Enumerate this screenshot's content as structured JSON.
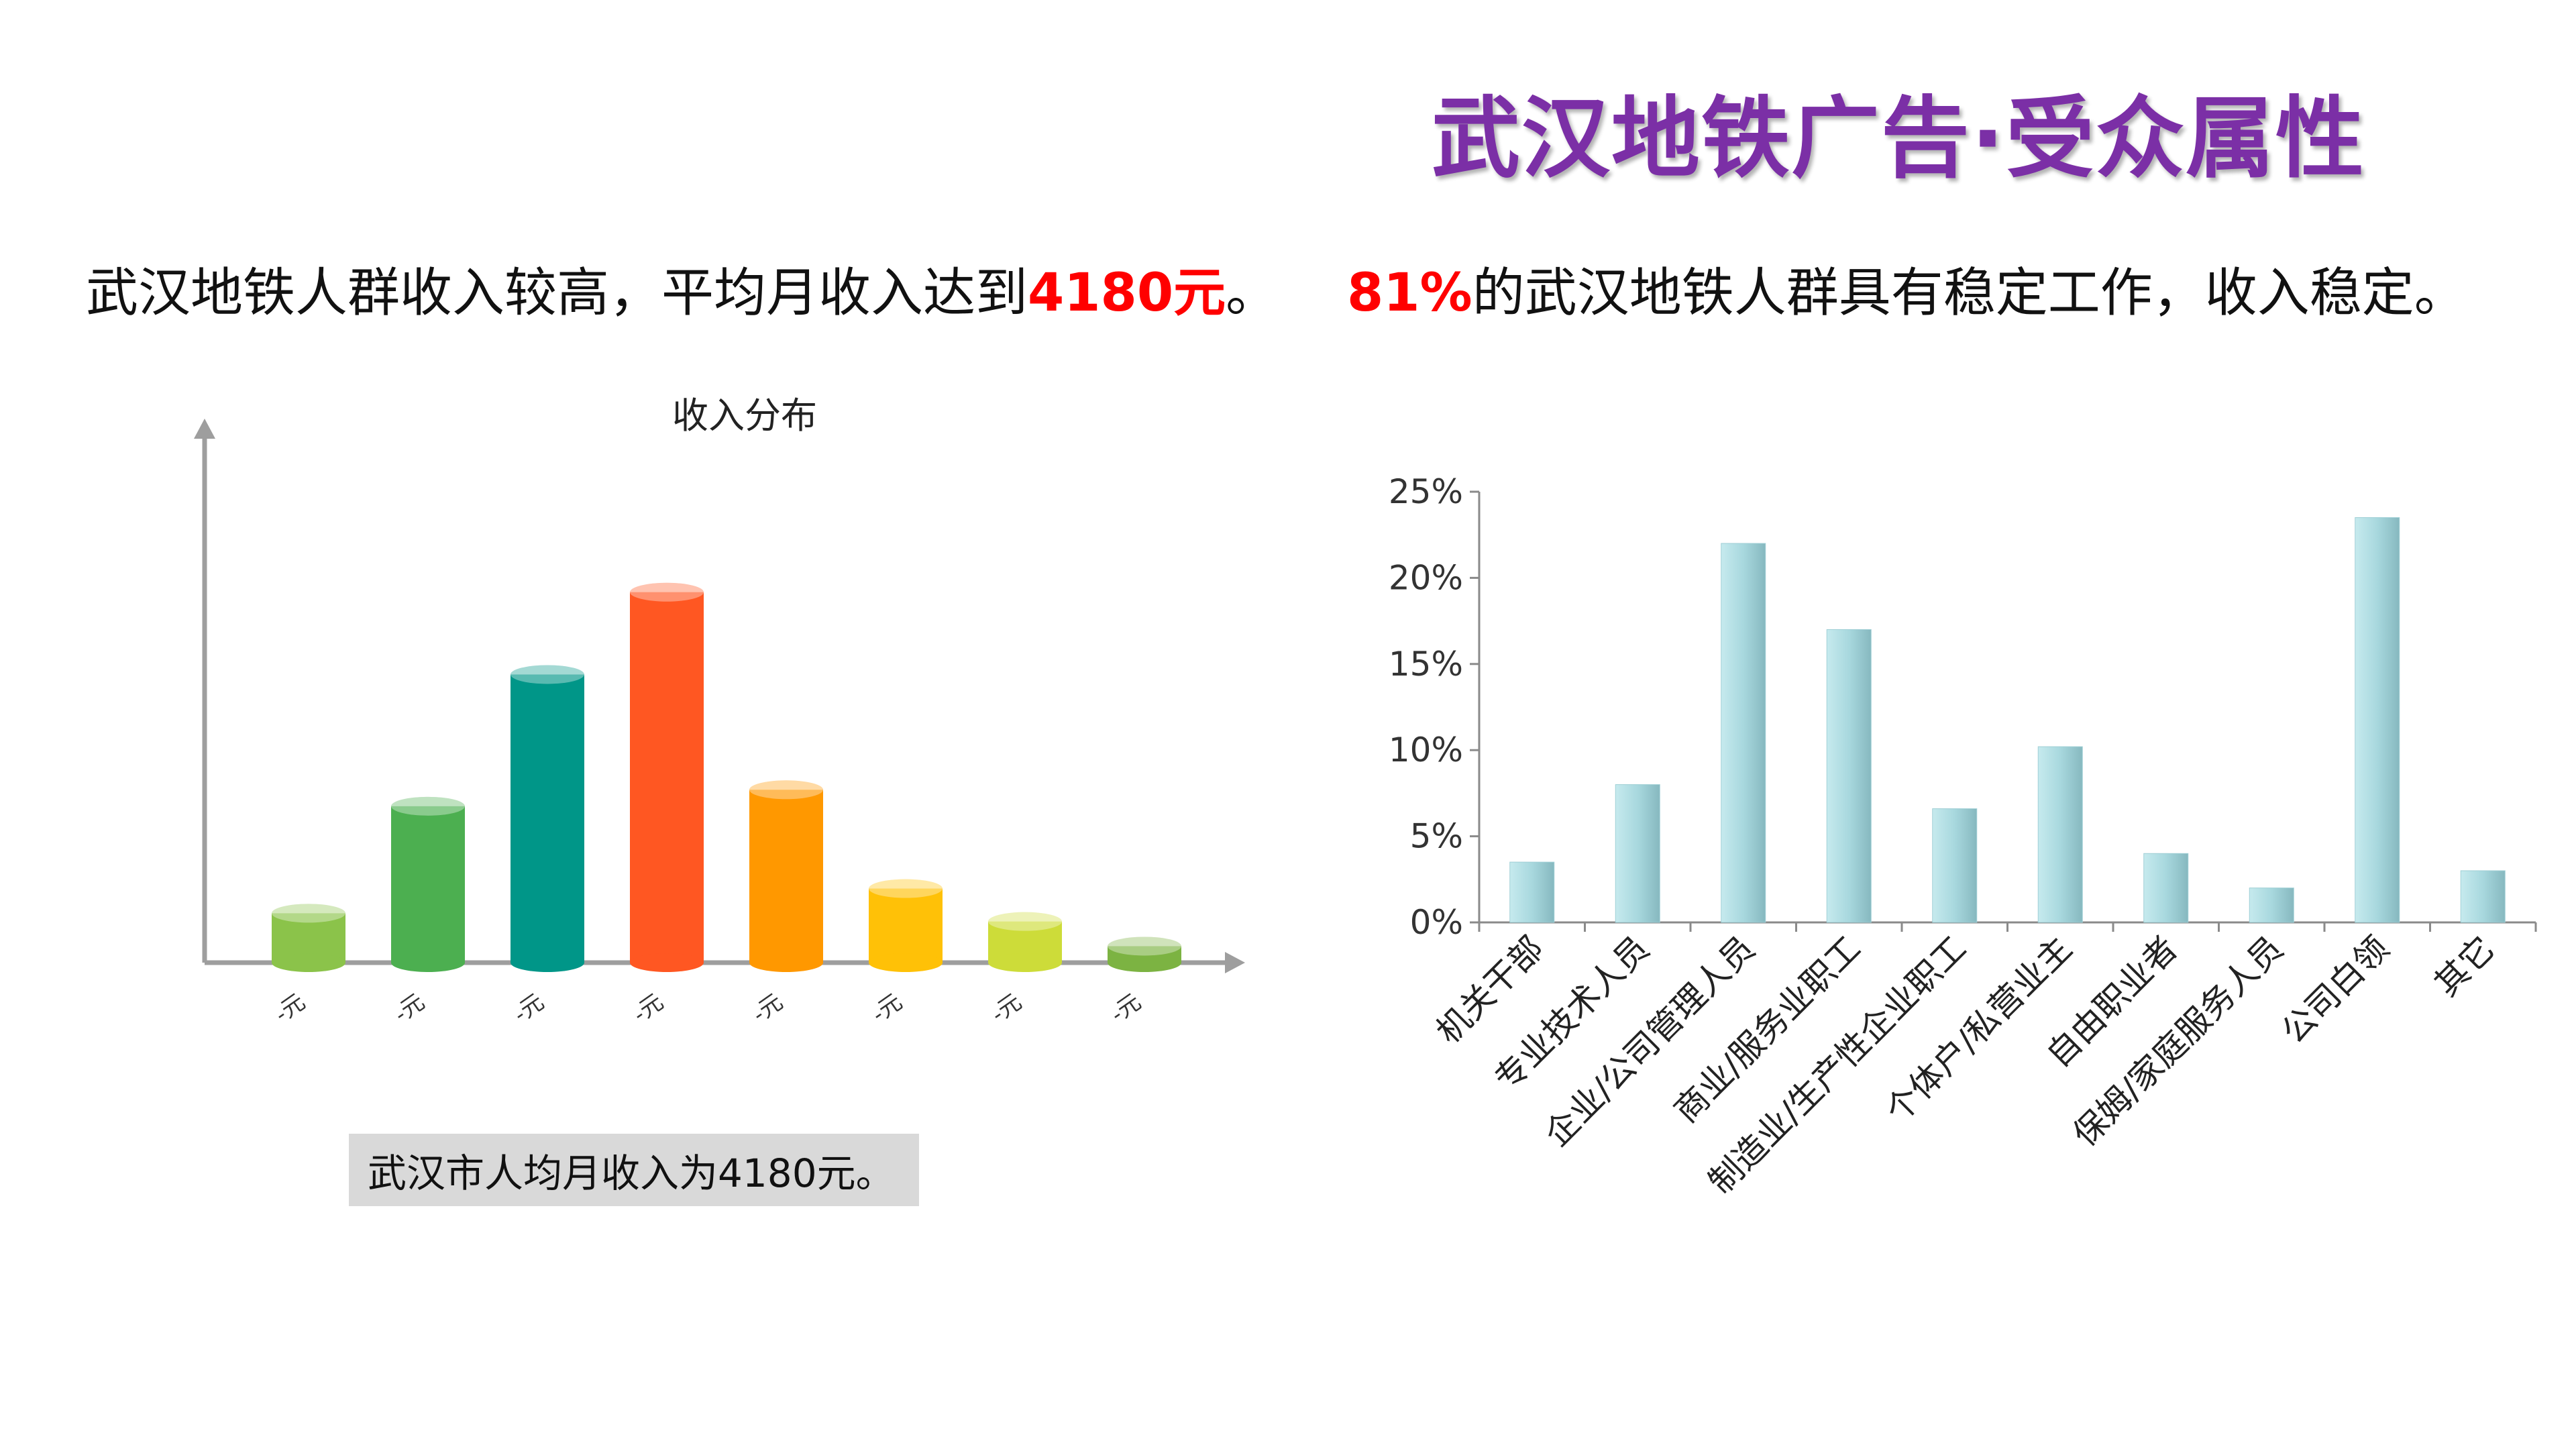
{
  "page": {
    "title": "武汉地铁广告·受众属性",
    "left_headline": {
      "text": "武汉地铁人群收入较高，平均月收入达到",
      "highlight": "4180元",
      "suffix": "。"
    },
    "right_headline": {
      "highlight": "81%",
      "text": "的武汉地铁人群具有稳定工作，收入稳定。"
    },
    "footnote": "武汉市人均月收入为4180元。"
  },
  "chart_data": [
    {
      "type": "bar",
      "title": "收入分布",
      "categories": [
        "-元",
        "-元",
        "-元",
        "-元",
        "-元",
        "-元",
        "-元",
        "-元"
      ],
      "values": [
        6,
        19,
        35,
        45,
        21,
        9,
        5,
        2
      ],
      "ylim": [
        0,
        55
      ],
      "colors": [
        "#8bc34a",
        "#4caf50",
        "#009688",
        "#ff5722",
        "#ff9800",
        "#ffc107",
        "#cddc39",
        "#7cb342"
      ],
      "style": "3d-cylinder",
      "grid": false
    },
    {
      "type": "bar",
      "categories": [
        "机关干部",
        "专业技术人员",
        "企业/公司管理人员",
        "商业/服务业职工",
        "制造业/生产性企业职工",
        "个体户/私营业主",
        "自由职业者",
        "保姆/家庭服务人员",
        "公司白领",
        "其它"
      ],
      "values": [
        3.5,
        8,
        22,
        17,
        6.6,
        10.2,
        4,
        2,
        23.5,
        3
      ],
      "yticks": [
        "0%",
        "5%",
        "10%",
        "15%",
        "20%",
        "25%"
      ],
      "ylim": [
        0,
        25
      ],
      "color": "#a8dadf",
      "grid": false
    }
  ]
}
